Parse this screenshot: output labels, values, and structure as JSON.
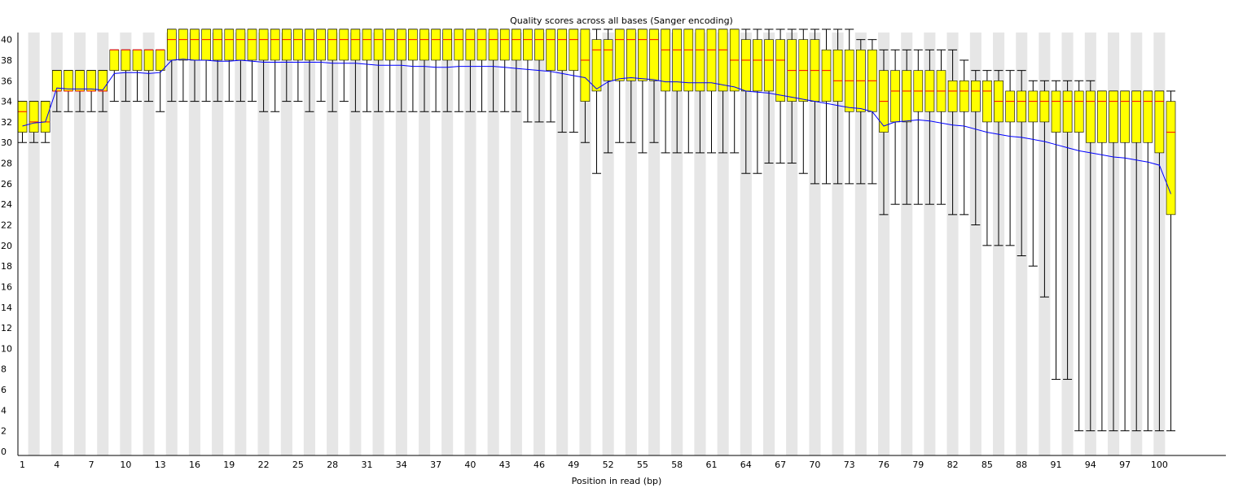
{
  "chart_data": {
    "type": "box",
    "title": "Quality scores across all bases (Sanger encoding)",
    "xlabel": "Position in read (bp)",
    "ylabel": "",
    "ylim": [
      0,
      41
    ],
    "y_ticks": [
      "0",
      "2",
      "4",
      "6",
      "8",
      "10",
      "12",
      "14",
      "16",
      "18",
      "20",
      "22",
      "24",
      "26",
      "28",
      "30",
      "32",
      "34",
      "36",
      "38",
      "40"
    ],
    "x_ticks": [
      {
        "pos": 1,
        "label": "1"
      },
      {
        "pos": 4,
        "label": "4"
      },
      {
        "pos": 7,
        "label": "7"
      },
      {
        "pos": 10,
        "label": "10"
      },
      {
        "pos": 13,
        "label": "13"
      },
      {
        "pos": 16,
        "label": "16"
      },
      {
        "pos": 19,
        "label": "19"
      },
      {
        "pos": 22,
        "label": "22"
      },
      {
        "pos": 25,
        "label": "25"
      },
      {
        "pos": 28,
        "label": "28"
      },
      {
        "pos": 31,
        "label": "31"
      },
      {
        "pos": 34,
        "label": "34"
      },
      {
        "pos": 37,
        "label": "37"
      },
      {
        "pos": 40,
        "label": "40"
      },
      {
        "pos": 43,
        "label": "43"
      },
      {
        "pos": 46,
        "label": "46"
      },
      {
        "pos": 49,
        "label": "49"
      },
      {
        "pos": 52,
        "label": "52"
      },
      {
        "pos": 55,
        "label": "55"
      },
      {
        "pos": 58,
        "label": "58"
      },
      {
        "pos": 61,
        "label": "61"
      },
      {
        "pos": 64,
        "label": "64"
      },
      {
        "pos": 67,
        "label": "67"
      },
      {
        "pos": 70,
        "label": "70"
      },
      {
        "pos": 73,
        "label": "73"
      },
      {
        "pos": 76,
        "label": "76"
      },
      {
        "pos": 79,
        "label": "79"
      },
      {
        "pos": 82,
        "label": "82"
      },
      {
        "pos": 85,
        "label": "85"
      },
      {
        "pos": 88,
        "label": "88"
      },
      {
        "pos": 91,
        "label": "91"
      },
      {
        "pos": 94,
        "label": "94"
      },
      {
        "pos": 97,
        "label": "97"
      },
      {
        "pos": 100,
        "label": "100"
      }
    ],
    "grid": "alternating vertical bands",
    "legend": "none",
    "colors": {
      "box": "#ffff00",
      "box_stroke": "#000000",
      "median": "#ff0000",
      "mean": "#0000ff",
      "band": "#e6e6e6",
      "whisker": "#000000"
    },
    "positions": [
      1,
      2,
      3,
      4,
      5,
      6,
      7,
      8,
      9,
      10,
      11,
      12,
      13,
      14,
      15,
      16,
      17,
      18,
      19,
      20,
      21,
      22,
      23,
      24,
      25,
      26,
      27,
      28,
      29,
      30,
      31,
      32,
      33,
      34,
      35,
      36,
      37,
      38,
      39,
      40,
      41,
      42,
      43,
      44,
      45,
      46,
      47,
      48,
      49,
      50,
      51,
      52,
      53,
      54,
      55,
      56,
      57,
      58,
      59,
      60,
      61,
      62,
      63,
      64,
      65,
      66,
      67,
      68,
      69,
      70,
      71,
      72,
      73,
      74,
      75,
      76,
      77,
      78,
      79,
      80,
      81,
      82,
      83,
      84,
      85,
      86,
      87,
      88,
      89,
      90,
      91,
      92,
      93,
      94,
      95,
      96,
      97,
      98,
      99,
      100,
      101
    ],
    "q1": [
      31,
      31,
      31,
      35,
      35,
      35,
      35,
      35,
      37,
      37,
      37,
      37,
      37,
      38,
      38,
      38,
      38,
      38,
      38,
      38,
      38,
      38,
      38,
      38,
      38,
      38,
      38,
      38,
      38,
      38,
      38,
      38,
      38,
      38,
      38,
      38,
      38,
      38,
      38,
      38,
      38,
      38,
      38,
      38,
      38,
      38,
      37,
      37,
      37,
      34,
      35,
      36,
      36,
      36,
      36,
      36,
      35,
      35,
      35,
      35,
      35,
      35,
      35,
      35,
      35,
      35,
      34,
      34,
      34,
      34,
      34,
      34,
      33,
      33,
      33,
      31,
      32,
      32,
      33,
      33,
      33,
      33,
      33,
      33,
      32,
      32,
      32,
      32,
      32,
      32,
      31,
      31,
      31,
      30,
      30,
      30,
      30,
      30,
      30,
      29,
      23
    ],
    "median": [
      33,
      32,
      32,
      35,
      35,
      35,
      35,
      35,
      39,
      39,
      39,
      39,
      39,
      40,
      40,
      40,
      40,
      40,
      40,
      40,
      40,
      40,
      40,
      40,
      40,
      40,
      40,
      40,
      40,
      40,
      40,
      40,
      40,
      40,
      40,
      40,
      40,
      40,
      40,
      40,
      40,
      40,
      40,
      40,
      40,
      40,
      40,
      40,
      40,
      38,
      39,
      39,
      40,
      40,
      40,
      40,
      39,
      39,
      39,
      39,
      39,
      39,
      38,
      38,
      38,
      38,
      38,
      37,
      37,
      37,
      37,
      36,
      36,
      36,
      36,
      34,
      35,
      35,
      35,
      35,
      35,
      35,
      35,
      35,
      35,
      34,
      34,
      34,
      34,
      34,
      34,
      34,
      34,
      34,
      34,
      34,
      34,
      34,
      34,
      34,
      31
    ],
    "q3": [
      34,
      34,
      34,
      37,
      37,
      37,
      37,
      37,
      39,
      39,
      39,
      39,
      39,
      41,
      41,
      41,
      41,
      41,
      41,
      41,
      41,
      41,
      41,
      41,
      41,
      41,
      41,
      41,
      41,
      41,
      41,
      41,
      41,
      41,
      41,
      41,
      41,
      41,
      41,
      41,
      41,
      41,
      41,
      41,
      41,
      41,
      41,
      41,
      41,
      41,
      40,
      40,
      41,
      41,
      41,
      41,
      41,
      41,
      41,
      41,
      41,
      41,
      41,
      40,
      40,
      40,
      40,
      40,
      40,
      40,
      39,
      39,
      39,
      39,
      39,
      37,
      37,
      37,
      37,
      37,
      37,
      36,
      36,
      36,
      36,
      36,
      35,
      35,
      35,
      35,
      35,
      35,
      35,
      35,
      35,
      35,
      35,
      35,
      35,
      35,
      34
    ],
    "p10": [
      30,
      30,
      30,
      33,
      33,
      33,
      33,
      33,
      34,
      34,
      34,
      34,
      33,
      34,
      34,
      34,
      34,
      34,
      34,
      34,
      34,
      33,
      33,
      34,
      34,
      33,
      34,
      33,
      34,
      33,
      33,
      33,
      33,
      33,
      33,
      33,
      33,
      33,
      33,
      33,
      33,
      33,
      33,
      33,
      32,
      32,
      32,
      31,
      31,
      30,
      27,
      29,
      30,
      30,
      29,
      30,
      29,
      29,
      29,
      29,
      29,
      29,
      29,
      27,
      27,
      28,
      28,
      28,
      27,
      26,
      26,
      26,
      26,
      26,
      26,
      23,
      24,
      24,
      24,
      24,
      24,
      23,
      23,
      22,
      20,
      20,
      20,
      19,
      18,
      15,
      7,
      7,
      2,
      2,
      2,
      2,
      2,
      2,
      2,
      2,
      2
    ],
    "p90": [
      34,
      34,
      34,
      37,
      37,
      37,
      37,
      37,
      39,
      39,
      39,
      39,
      39,
      41,
      41,
      41,
      41,
      41,
      41,
      41,
      41,
      41,
      41,
      41,
      41,
      41,
      41,
      41,
      41,
      41,
      41,
      41,
      41,
      41,
      41,
      41,
      41,
      41,
      41,
      41,
      41,
      41,
      41,
      41,
      41,
      41,
      41,
      41,
      41,
      41,
      41,
      41,
      41,
      41,
      41,
      41,
      41,
      41,
      41,
      41,
      41,
      41,
      41,
      41,
      41,
      41,
      41,
      41,
      41,
      41,
      41,
      41,
      41,
      40,
      40,
      39,
      39,
      39,
      39,
      39,
      39,
      39,
      38,
      37,
      37,
      37,
      37,
      37,
      36,
      36,
      36,
      36,
      36,
      36,
      35,
      35,
      35,
      35,
      35,
      35,
      35
    ],
    "mean": [
      31.6,
      31.9,
      32.0,
      35.3,
      35.2,
      35.2,
      35.2,
      35.1,
      36.7,
      36.8,
      36.8,
      36.7,
      36.8,
      38.0,
      38.1,
      38.0,
      38.0,
      37.9,
      37.9,
      38.0,
      37.9,
      37.8,
      37.8,
      37.8,
      37.8,
      37.8,
      37.8,
      37.7,
      37.7,
      37.7,
      37.6,
      37.5,
      37.5,
      37.5,
      37.4,
      37.4,
      37.3,
      37.3,
      37.4,
      37.4,
      37.4,
      37.4,
      37.3,
      37.2,
      37.1,
      37.0,
      36.9,
      36.7,
      36.5,
      36.3,
      35.2,
      35.9,
      36.2,
      36.3,
      36.2,
      36.1,
      35.9,
      35.9,
      35.8,
      35.8,
      35.8,
      35.6,
      35.4,
      35.0,
      34.9,
      34.8,
      34.6,
      34.4,
      34.2,
      34.0,
      33.8,
      33.6,
      33.4,
      33.3,
      33.0,
      31.6,
      32.0,
      32.1,
      32.2,
      32.1,
      31.9,
      31.7,
      31.6,
      31.3,
      31.0,
      30.8,
      30.6,
      30.5,
      30.3,
      30.1,
      29.8,
      29.5,
      29.2,
      29.0,
      28.8,
      28.6,
      28.5,
      28.3,
      28.1,
      27.8,
      25.0
    ]
  }
}
